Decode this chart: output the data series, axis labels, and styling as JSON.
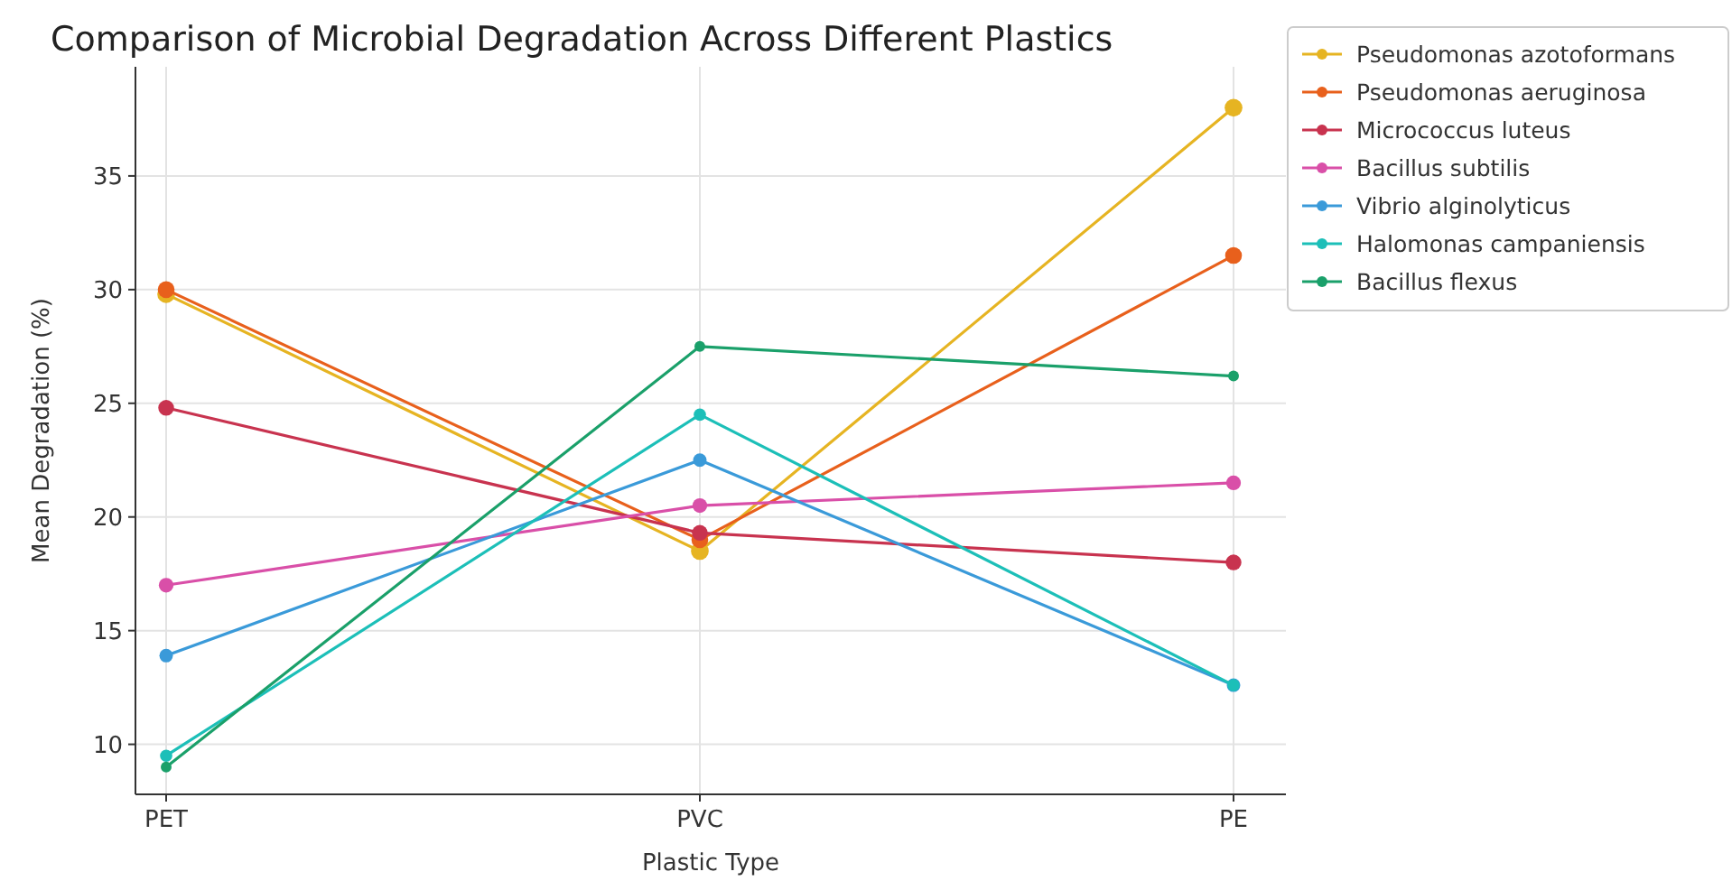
{
  "chart_data": {
    "type": "line",
    "title": "Comparison of Microbial Degradation Across Different Plastics",
    "xlabel": "Plastic Type",
    "ylabel": "Mean Degradation (%)",
    "categories": [
      "PET",
      "PVC",
      "PE"
    ],
    "ylim": [
      7.8,
      39.8
    ],
    "yticks": [
      10,
      15,
      20,
      25,
      30,
      35
    ],
    "grid": true,
    "legend": "top right",
    "marker": "circle",
    "series": [
      {
        "name": "Pseudomonas azotoformans",
        "color": "#e6b422",
        "values": [
          29.8,
          18.5,
          38
        ]
      },
      {
        "name": "Pseudomonas aeruginosa",
        "color": "#e8601c",
        "values": [
          30,
          19,
          31.5
        ]
      },
      {
        "name": "Micrococcus luteus",
        "color": "#c8334f",
        "values": [
          24.8,
          19.3,
          18
        ]
      },
      {
        "name": "Bacillus subtilis",
        "color": "#d94fa8",
        "values": [
          17,
          20.5,
          21.5
        ]
      },
      {
        "name": "Vibrio alginolyticus",
        "color": "#3a9ad9",
        "values": [
          13.9,
          22.5,
          12.6
        ]
      },
      {
        "name": "Halomonas campaniensis",
        "color": "#1cbfb8",
        "values": [
          9.5,
          24.5,
          12.6
        ]
      },
      {
        "name": "Bacillus flexus",
        "color": "#1aa06a",
        "values": [
          9,
          27.5,
          26.2
        ]
      }
    ]
  }
}
